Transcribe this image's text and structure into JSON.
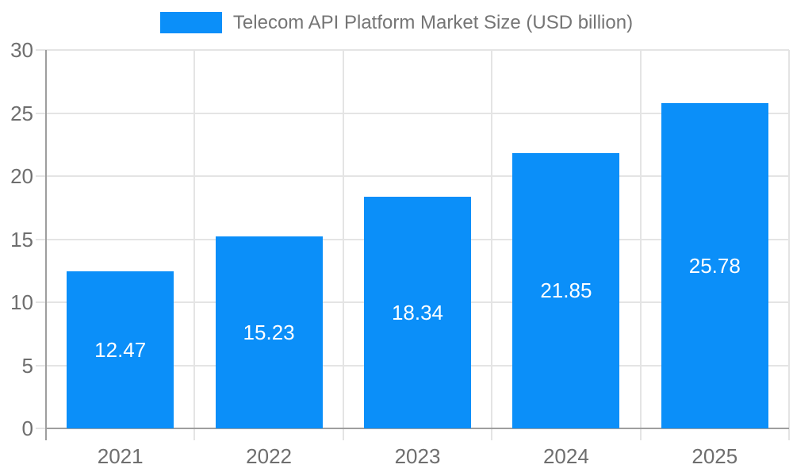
{
  "chart_data": {
    "type": "bar",
    "title": "Telecom API Platform Market Size (USD billion)",
    "categories": [
      "2021",
      "2022",
      "2023",
      "2024",
      "2025"
    ],
    "values": [
      12.47,
      15.23,
      18.34,
      21.85,
      25.78
    ],
    "value_labels": [
      "12.47",
      "15.23",
      "18.34",
      "21.85",
      "25.78"
    ],
    "xlabel": "",
    "ylabel": "",
    "ylim": [
      0,
      30
    ],
    "yticks": [
      0,
      5,
      10,
      15,
      20,
      25,
      30
    ],
    "grid": true,
    "legend_position": "top-center",
    "colors": {
      "bar": "#0b8ff9",
      "value_label": "#ffffff",
      "legend_text": "#757575",
      "tick_label": "#6e6e6e",
      "gridline": "#e4e4e4",
      "axis_line": "#9e9e9e",
      "background": "#ffffff"
    }
  }
}
